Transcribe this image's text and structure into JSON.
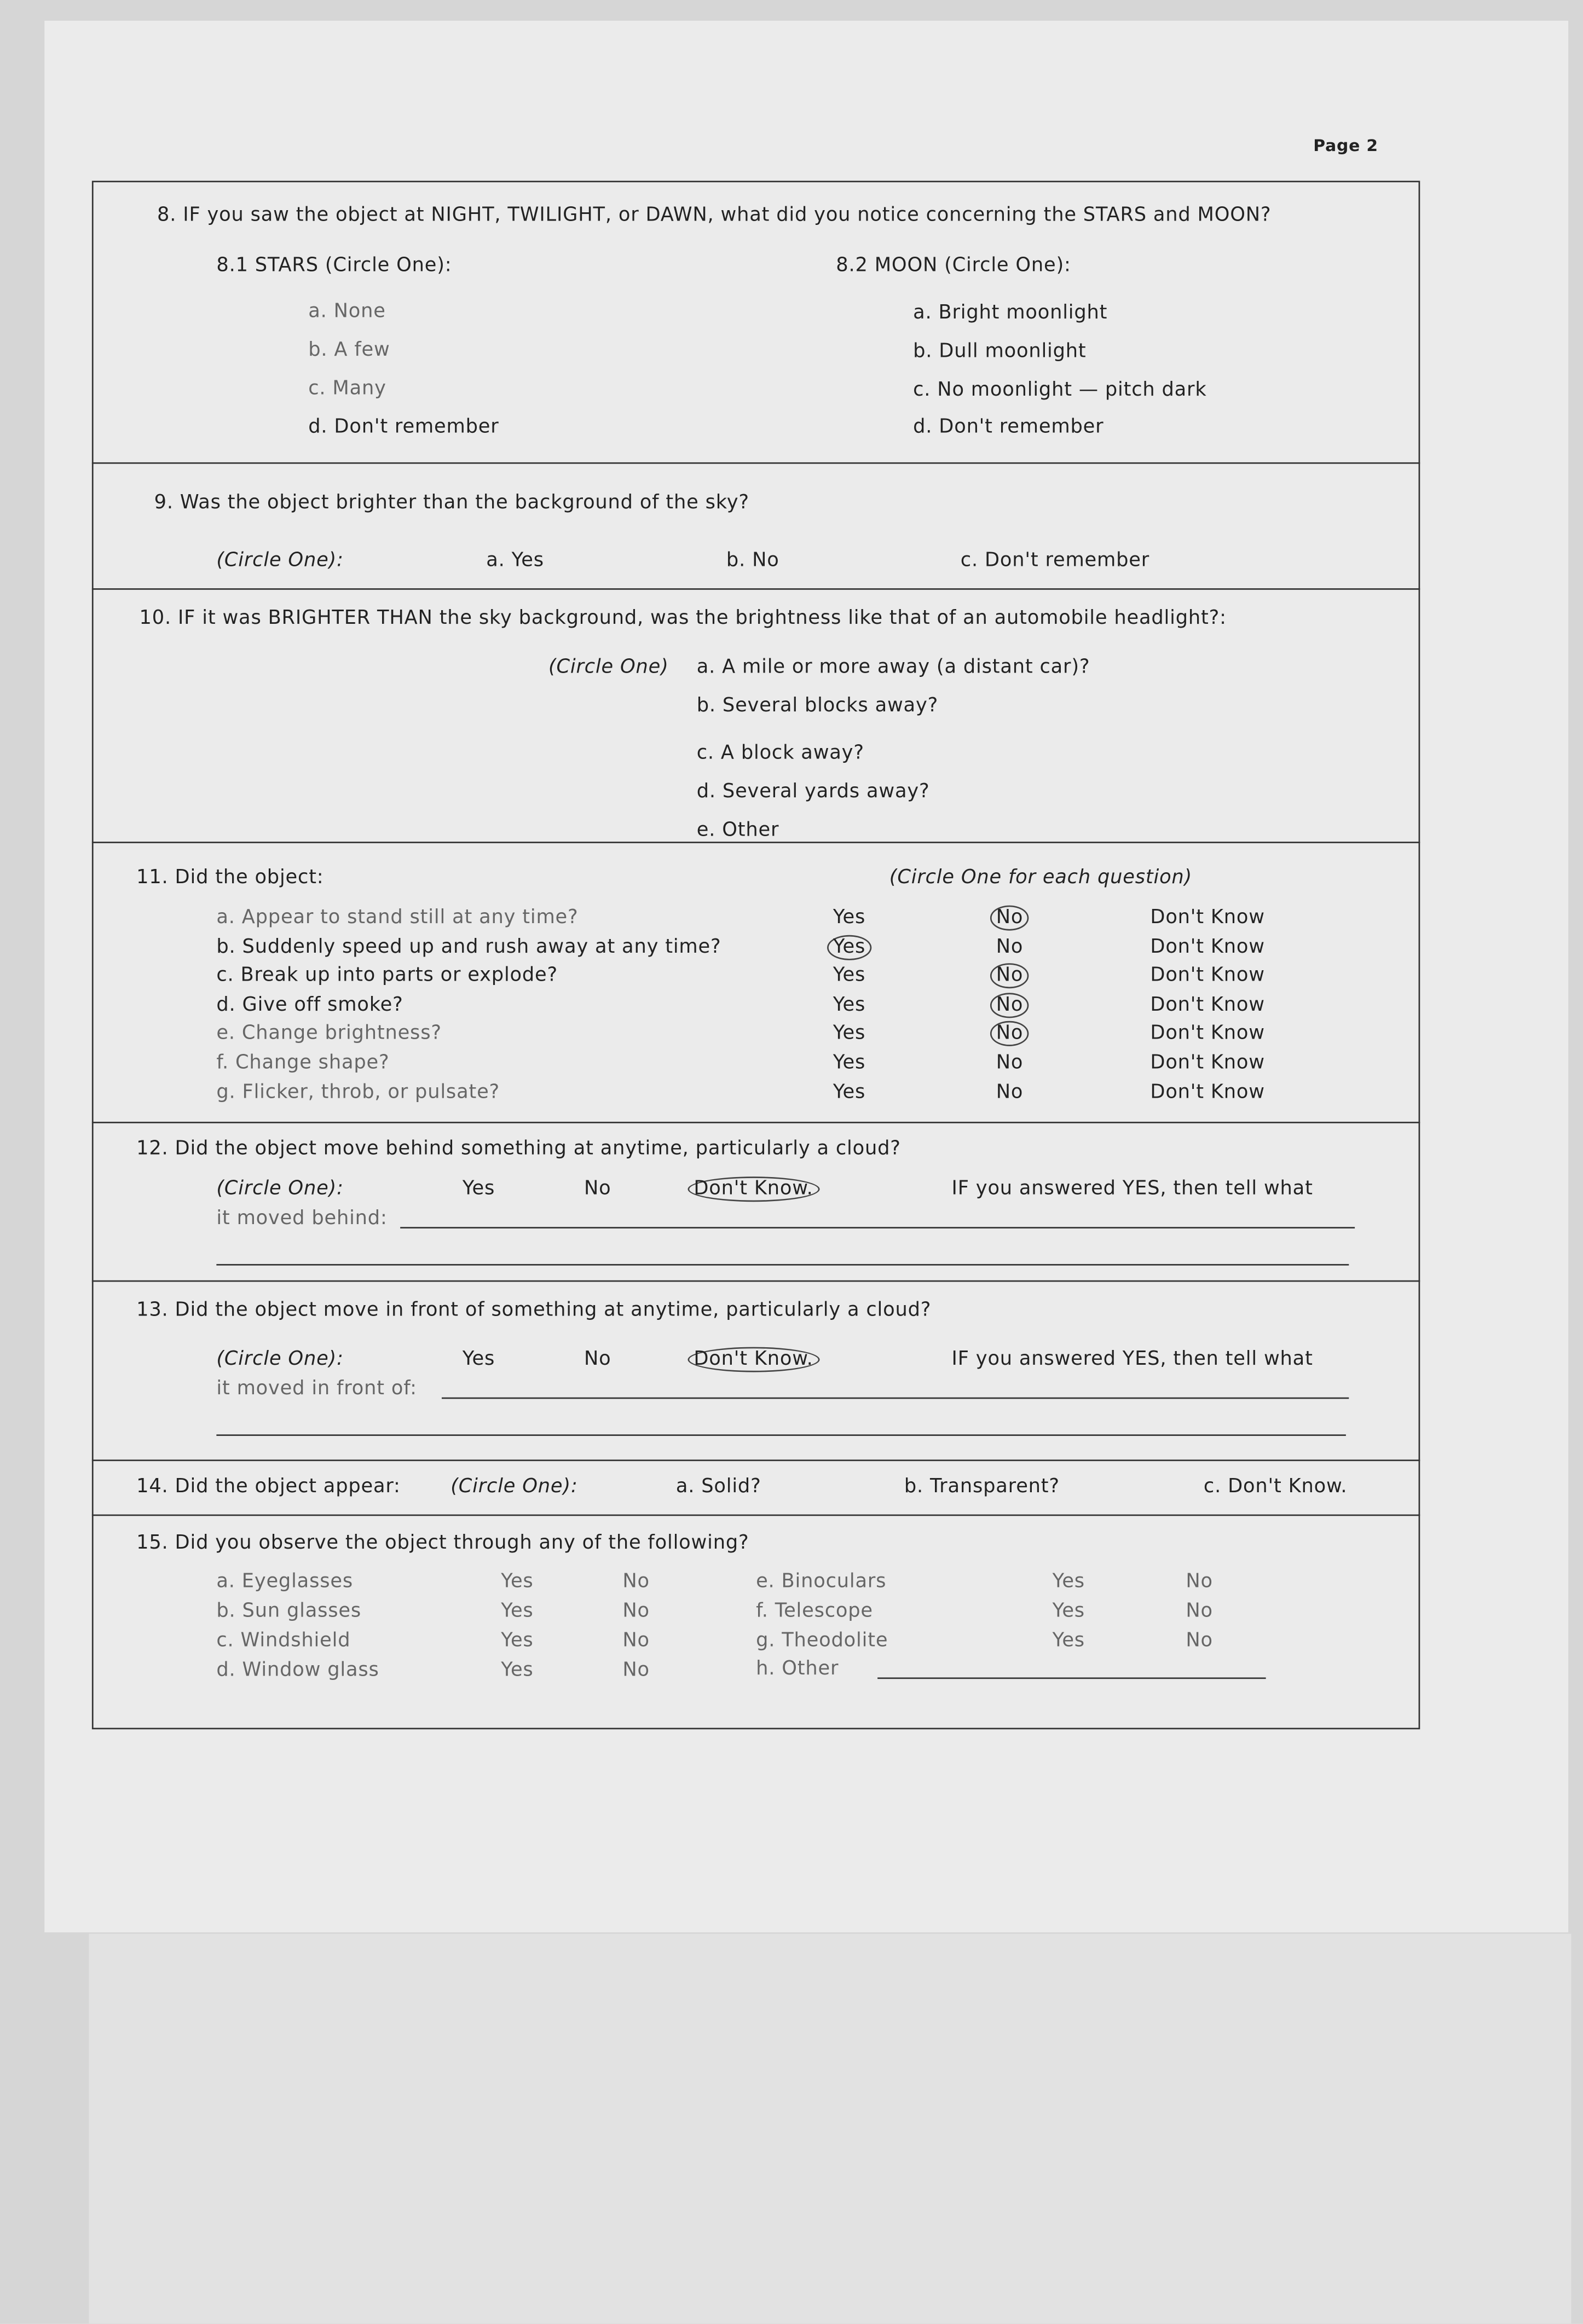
{
  "page_label": "Page 2",
  "q8": {
    "question": "8. IF you saw the object at NIGHT, TWILIGHT, or DAWN, what did you notice concerning the STARS and MOON?",
    "stars_label": "8.1 STARS (Circle One):",
    "stars_options": [
      "a. None",
      "b. A few",
      "c. Many",
      "d. Don't remember"
    ],
    "moon_label": "8.2 MOON (Circle One):",
    "moon_options": [
      "a. Bright moonlight",
      "b. Dull moonlight",
      "c. No moonlight — pitch dark",
      "d. Don't remember"
    ]
  },
  "q9": {
    "question": "9. Was the object brighter than the background of the sky?",
    "circle": "(Circle One):",
    "options": [
      "a. Yes",
      "b. No",
      "c. Don't remember"
    ]
  },
  "q10": {
    "question": "10. IF it was BRIGHTER THAN the sky background, was the brightness like that of an automobile headlight?:",
    "circle": "(Circle One)",
    "options": [
      "a. A mile or more away (a distant car)?",
      "b. Several blocks away?",
      "c. A block away?",
      "d. Several yards away?",
      "e. Other"
    ]
  },
  "q11": {
    "question": "11. Did the object:",
    "circle": "(Circle One for each question)",
    "rows": [
      {
        "item": "a. Appear to stand still at any time?",
        "yes": "Yes",
        "no": "No",
        "dk": "Don't Know",
        "circled": "no"
      },
      {
        "item": "b. Suddenly speed up and rush away at any time?",
        "yes": "Yes",
        "no": "No",
        "dk": "Don't Know",
        "circled": "yes"
      },
      {
        "item": "c. Break up into parts or explode?",
        "yes": "Yes",
        "no": "No",
        "dk": "Don't Know",
        "circled": "no"
      },
      {
        "item": "d. Give off smoke?",
        "yes": "Yes",
        "no": "No",
        "dk": "Don't Know",
        "circled": "no"
      },
      {
        "item": "e. Change brightness?",
        "yes": "Yes",
        "no": "No",
        "dk": "Don't Know",
        "circled": "no"
      },
      {
        "item": "f. Change shape?",
        "yes": "Yes",
        "no": "No",
        "dk": "Don't Know",
        "circled": ""
      },
      {
        "item": "g. Flicker, throb, or pulsate?",
        "yes": "Yes",
        "no": "No",
        "dk": "Don't Know",
        "circled": ""
      }
    ]
  },
  "q12": {
    "question": "12. Did the object move behind something at anytime, particularly a cloud?",
    "circle": "(Circle One):",
    "yes": "Yes",
    "no": "No",
    "dk": "Don't Know.",
    "circled": "dk",
    "followup": "IF you answered YES, then tell what",
    "followup2": "it moved behind:"
  },
  "q13": {
    "question": "13. Did the object move in front of something at anytime, particularly a cloud?",
    "circle": "(Circle One):",
    "yes": "Yes",
    "no": "No",
    "dk": "Don't Know.",
    "circled": "dk",
    "followup": "IF you answered YES, then tell what",
    "followup2": "it moved in front of:"
  },
  "q14": {
    "question": "14. Did the object appear:",
    "circle": "(Circle One):",
    "options": [
      "a. Solid?",
      "b. Transparent?",
      "c. Don't Know."
    ]
  },
  "q15": {
    "question": "15. Did you observe the object through any of the following?",
    "left": [
      {
        "item": "a. Eyeglasses",
        "yes": "Yes",
        "no": "No"
      },
      {
        "item": "b. Sun glasses",
        "yes": "Yes",
        "no": "No"
      },
      {
        "item": "c. Windshield",
        "yes": "Yes",
        "no": "No"
      },
      {
        "item": "d. Window glass",
        "yes": "Yes",
        "no": "No"
      }
    ],
    "right": [
      {
        "item": "e. Binoculars",
        "yes": "Yes",
        "no": "No"
      },
      {
        "item": "f. Telescope",
        "yes": "Yes",
        "no": "No"
      },
      {
        "item": "g. Theodolite",
        "yes": "Yes",
        "no": "No"
      }
    ],
    "other": "h. Other"
  }
}
